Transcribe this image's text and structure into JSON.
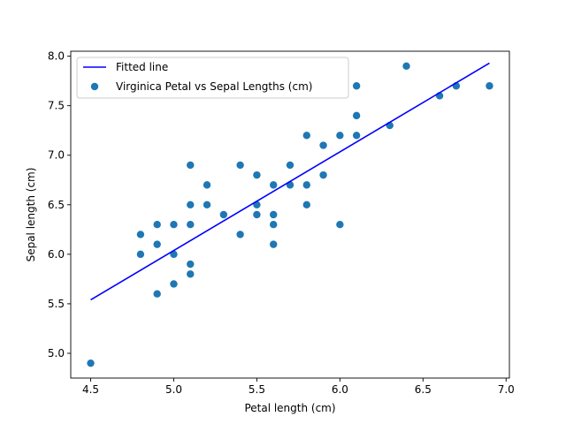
{
  "chart_data": {
    "type": "scatter",
    "title": "",
    "xlabel": "Petal length (cm)",
    "ylabel": "Sepal length (cm)",
    "xlim": [
      4.38,
      7.02
    ],
    "ylim": [
      4.75,
      8.05
    ],
    "xticks": [
      "4.5",
      "5.0",
      "5.5",
      "6.0",
      "6.5",
      "7.0"
    ],
    "yticks": [
      "5.0",
      "5.5",
      "6.0",
      "6.5",
      "7.0",
      "7.5",
      "8.0"
    ],
    "grid": false,
    "legend_position": "top-left",
    "series": [
      {
        "name": "Fitted line",
        "kind": "line",
        "color": "#0000ff",
        "x": [
          4.5,
          6.9
        ],
        "y": [
          5.54,
          7.93
        ]
      },
      {
        "name": "Virginica Petal vs Sepal Lengths (cm)",
        "kind": "scatter",
        "color": "#1f77b4",
        "points": [
          [
            4.5,
            4.9
          ],
          [
            4.8,
            6.2
          ],
          [
            4.8,
            6.0
          ],
          [
            4.9,
            6.3
          ],
          [
            4.9,
            6.1
          ],
          [
            4.9,
            5.6
          ],
          [
            5.0,
            6.3
          ],
          [
            5.0,
            6.0
          ],
          [
            5.0,
            5.7
          ],
          [
            5.1,
            6.9
          ],
          [
            5.1,
            6.5
          ],
          [
            5.1,
            6.3
          ],
          [
            5.1,
            5.9
          ],
          [
            5.1,
            5.8
          ],
          [
            5.2,
            6.7
          ],
          [
            5.2,
            6.5
          ],
          [
            5.3,
            6.4
          ],
          [
            5.4,
            6.9
          ],
          [
            5.4,
            6.2
          ],
          [
            5.5,
            6.8
          ],
          [
            5.5,
            6.5
          ],
          [
            5.5,
            6.4
          ],
          [
            5.6,
            6.7
          ],
          [
            5.6,
            6.4
          ],
          [
            5.6,
            6.3
          ],
          [
            5.6,
            6.1
          ],
          [
            5.7,
            6.9
          ],
          [
            5.7,
            6.7
          ],
          [
            5.8,
            7.2
          ],
          [
            5.8,
            6.7
          ],
          [
            5.8,
            6.5
          ],
          [
            5.9,
            7.1
          ],
          [
            5.9,
            6.8
          ],
          [
            6.0,
            7.2
          ],
          [
            6.0,
            6.3
          ],
          [
            6.1,
            7.7
          ],
          [
            6.1,
            7.4
          ],
          [
            6.1,
            7.2
          ],
          [
            6.3,
            7.3
          ],
          [
            6.4,
            7.9
          ],
          [
            6.6,
            7.6
          ],
          [
            6.7,
            7.7
          ],
          [
            6.9,
            7.7
          ]
        ]
      }
    ]
  }
}
